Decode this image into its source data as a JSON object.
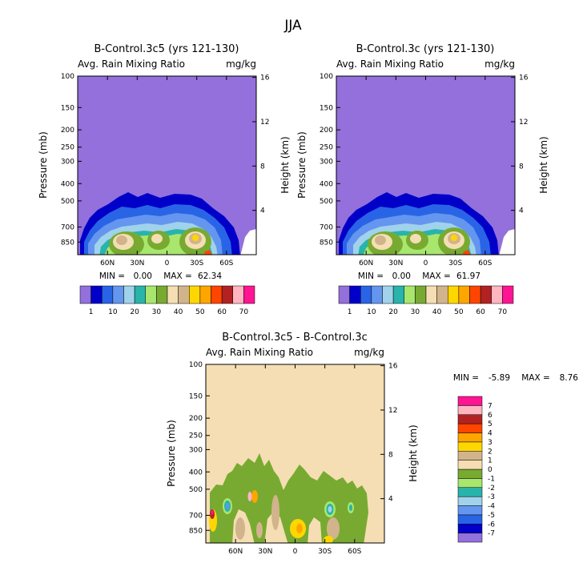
{
  "figure": {
    "main_title": "JJA",
    "field_label": "Avg. Rain Mixing Ratio",
    "units": "mg/kg",
    "y_left_label": "Pressure (mb)",
    "y_right_label": "Height (km)"
  },
  "abs_colors": [
    "#9370db",
    "#0000c8",
    "#2a64e6",
    "#6496f0",
    "#a0d2eb",
    "#28b4aa",
    "#a8e66e",
    "#78aa32",
    "#f5deb3",
    "#d2b48c",
    "#ffd700",
    "#ffa500",
    "#ff4500",
    "#b22222",
    "#ffb6c1",
    "#ff1493"
  ],
  "abs_labels": [
    "1",
    "10",
    "20",
    "30",
    "40",
    "50",
    "60",
    "70"
  ],
  "diff_colors": [
    "#9370db",
    "#0000c8",
    "#2a64e6",
    "#6496f0",
    "#a0d2eb",
    "#28b4aa",
    "#a8e66e",
    "#78aa32",
    "#f5deb3",
    "#d2b48c",
    "#ffd700",
    "#ffa500",
    "#ff4500",
    "#b22222",
    "#ffb6c1",
    "#ff1493"
  ],
  "diff_labels": [
    "-7",
    "-6",
    "-5",
    "-4",
    "-3",
    "-2",
    "-1",
    "0",
    "1",
    "2",
    "3",
    "4",
    "5",
    "6",
    "7"
  ],
  "chart_data": [
    {
      "type": "heatmap",
      "title": "B-Control.3c5 (yrs 121-130)",
      "subtitle_left": "Avg. Rain Mixing Ratio",
      "subtitle_right": "mg/kg",
      "ylabel": "Pressure (mb)",
      "ylabel_right": "Height (km)",
      "x_ticks": [
        "60N",
        "30N",
        "0",
        "30S",
        "60S"
      ],
      "x_tick_lat": [
        60,
        30,
        0,
        -30,
        -60
      ],
      "x_range": [
        90,
        -90
      ],
      "y_ticks": [
        100,
        150,
        200,
        250,
        300,
        400,
        500,
        700,
        850
      ],
      "y_range": [
        100,
        1000
      ],
      "y_right_ticks": [
        4,
        8,
        12,
        16
      ],
      "stats": {
        "min_label": "MIN =",
        "min": "0.00",
        "max_label": "MAX =",
        "max": "62.34"
      },
      "levels": [
        1,
        5,
        10,
        15,
        20,
        25,
        30,
        35,
        40,
        45,
        50,
        55,
        60,
        65,
        70
      ]
    },
    {
      "type": "heatmap",
      "title": "B-Control.3c (yrs 121-130)",
      "subtitle_left": "Avg. Rain Mixing Ratio",
      "subtitle_right": "mg/kg",
      "ylabel": "Pressure (mb)",
      "ylabel_right": "Height (km)",
      "x_ticks": [
        "60N",
        "30N",
        "0",
        "30S",
        "60S"
      ],
      "x_tick_lat": [
        60,
        30,
        0,
        -30,
        -60
      ],
      "x_range": [
        90,
        -90
      ],
      "y_ticks": [
        100,
        150,
        200,
        250,
        300,
        400,
        500,
        700,
        850
      ],
      "y_range": [
        100,
        1000
      ],
      "y_right_ticks": [
        4,
        8,
        12,
        16
      ],
      "stats": {
        "min_label": "MIN =",
        "min": "0.00",
        "max_label": "MAX =",
        "max": "61.97"
      },
      "levels": [
        1,
        5,
        10,
        15,
        20,
        25,
        30,
        35,
        40,
        45,
        50,
        55,
        60,
        65,
        70
      ]
    },
    {
      "type": "heatmap",
      "title": "B-Control.3c5 - B-Control.3c",
      "subtitle_left": "Avg. Rain Mixing Ratio",
      "subtitle_right": "mg/kg",
      "ylabel": "Pressure (mb)",
      "ylabel_right": "Height (km)",
      "x_ticks": [
        "60N",
        "30N",
        "0",
        "30S",
        "60S"
      ],
      "x_tick_lat": [
        60,
        30,
        0,
        -30,
        -60
      ],
      "x_range": [
        90,
        -90
      ],
      "y_ticks": [
        100,
        150,
        200,
        250,
        300,
        400,
        500,
        700,
        850
      ],
      "y_range": [
        100,
        1000
      ],
      "y_right_ticks": [
        4,
        8,
        12,
        16
      ],
      "stats": {
        "min_label": "MIN =",
        "min": "-5.89",
        "max_label": "MAX =",
        "max": "8.76"
      },
      "levels": [
        -7,
        -6,
        -5,
        -4,
        -3,
        -2,
        -1,
        0,
        1,
        2,
        3,
        4,
        5,
        6,
        7
      ]
    }
  ]
}
